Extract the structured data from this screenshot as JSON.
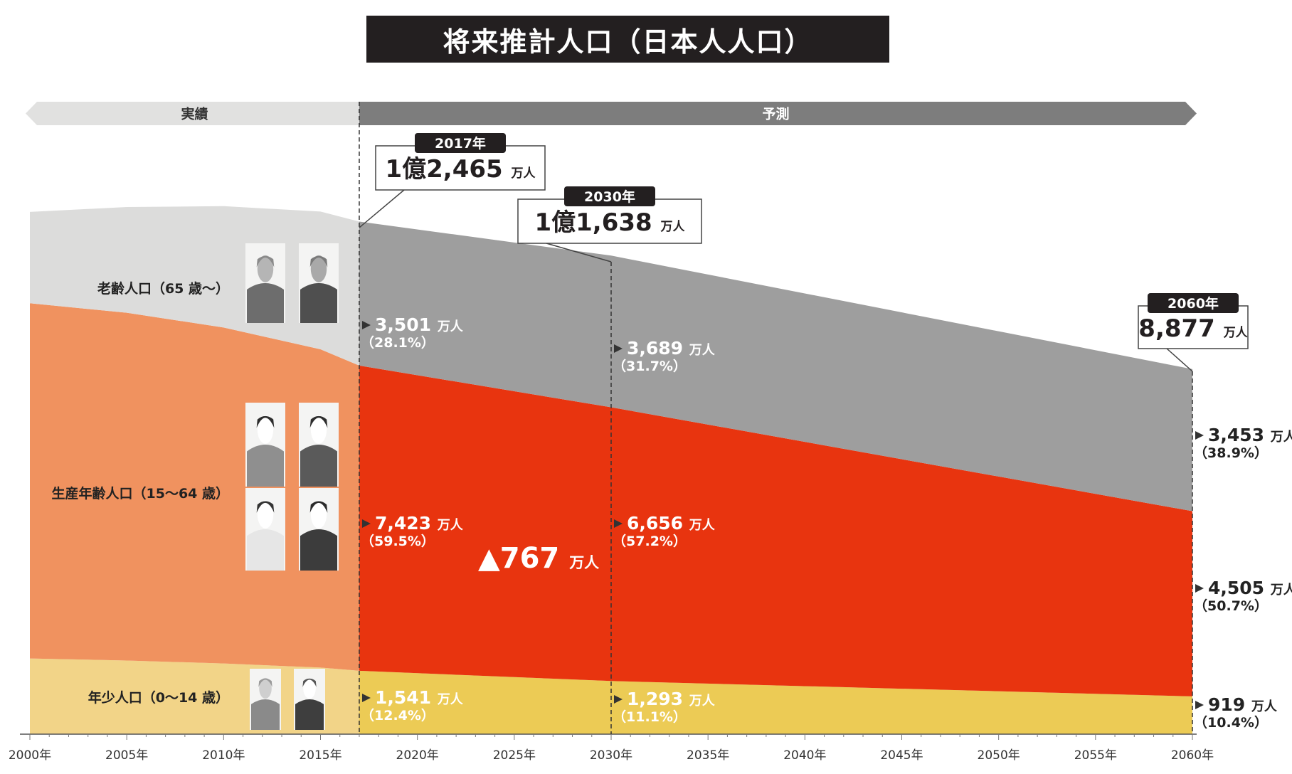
{
  "title": "将来推計人口（日本人人口）",
  "chart_data": {
    "type": "area",
    "title": "将来推計人口（日本人人口）",
    "x_ticks": [
      "2000年",
      "2005年",
      "2010年",
      "2015年",
      "2020年",
      "2025年",
      "2030年",
      "2035年",
      "2040年",
      "2045年",
      "2050年",
      "2055年",
      "2060年"
    ],
    "period_labels": {
      "actual": "実績",
      "forecast": "予測"
    },
    "series": [
      {
        "name": "年少人口（0〜14 歳）",
        "color_actual": "#f2d488",
        "color_forecast": "#eccb55",
        "points": [
          [
            2000,
            1840
          ],
          [
            2005,
            1790
          ],
          [
            2010,
            1720
          ],
          [
            2015,
            1620
          ],
          [
            2017,
            1541
          ],
          [
            2030,
            1293
          ],
          [
            2060,
            919
          ]
        ]
      },
      {
        "name": "生産年齢人口（15〜64 歳）",
        "color_actual": "#f0925f",
        "color_forecast": "#e8340f",
        "points": [
          [
            2000,
            8640
          ],
          [
            2005,
            8460
          ],
          [
            2010,
            8170
          ],
          [
            2015,
            7740
          ],
          [
            2017,
            7423
          ],
          [
            2030,
            6656
          ],
          [
            2060,
            4505
          ]
        ]
      },
      {
        "name": "老齢人口（65 歳〜）",
        "color_actual": "#dcdcdb",
        "color_forecast": "#9e9e9e",
        "points": [
          [
            2000,
            2220
          ],
          [
            2005,
            2570
          ],
          [
            2010,
            2950
          ],
          [
            2015,
            3350
          ],
          [
            2017,
            3501
          ],
          [
            2030,
            3689
          ],
          [
            2060,
            3453
          ]
        ]
      }
    ],
    "callouts": [
      {
        "year": "2017年",
        "value": "1億2,465",
        "unit": "万人"
      },
      {
        "year": "2030年",
        "value": "1億1,638",
        "unit": "万人"
      },
      {
        "year": "2060年",
        "value": "8,877",
        "unit": "万人"
      }
    ],
    "labels_2017": [
      {
        "value": "3,501",
        "unit": "万人",
        "pct": "（28.1%）"
      },
      {
        "value": "7,423",
        "unit": "万人",
        "pct": "（59.5%）"
      },
      {
        "value": "1,541",
        "unit": "万人",
        "pct": "（12.4%）"
      }
    ],
    "labels_2030": [
      {
        "value": "3,689",
        "unit": "万人",
        "pct": "（31.7%）"
      },
      {
        "value": "6,656",
        "unit": "万人",
        "pct": "（57.2%）"
      },
      {
        "value": "1,293",
        "unit": "万人",
        "pct": "（11.1%）"
      }
    ],
    "labels_2060": [
      {
        "value": "3,453",
        "unit": "万人",
        "pct": "（38.9%）"
      },
      {
        "value": "4,505",
        "unit": "万人",
        "pct": "（50.7%）"
      },
      {
        "value": "919",
        "unit": "万人",
        "pct": "（10.4%）"
      }
    ],
    "decline": {
      "value": "▲767",
      "unit": "万人"
    },
    "ylim": [
      0,
      14000
    ],
    "grid": false
  }
}
